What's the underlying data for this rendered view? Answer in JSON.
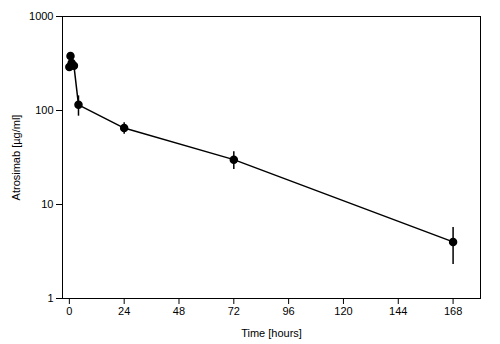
{
  "chart_data": {
    "type": "line",
    "x": [
      0,
      0.5,
      1,
      2,
      4,
      24,
      72,
      168
    ],
    "values": [
      290,
      380,
      320,
      300,
      115,
      65,
      30,
      4.0
    ],
    "yerr": [
      15,
      25,
      20,
      20,
      28,
      9,
      6.5,
      1.7
    ],
    "xlabel": "Time [hours]",
    "ylabel": "Atrosimab [µg/ml]",
    "xlim": [
      -3,
      180
    ],
    "ylim": [
      1,
      1000
    ],
    "xticks": [
      0,
      24,
      48,
      72,
      96,
      120,
      144,
      168
    ],
    "yticks": [
      1,
      10,
      100,
      1000
    ],
    "log": "y",
    "color": "#000000",
    "marker": "circle"
  }
}
